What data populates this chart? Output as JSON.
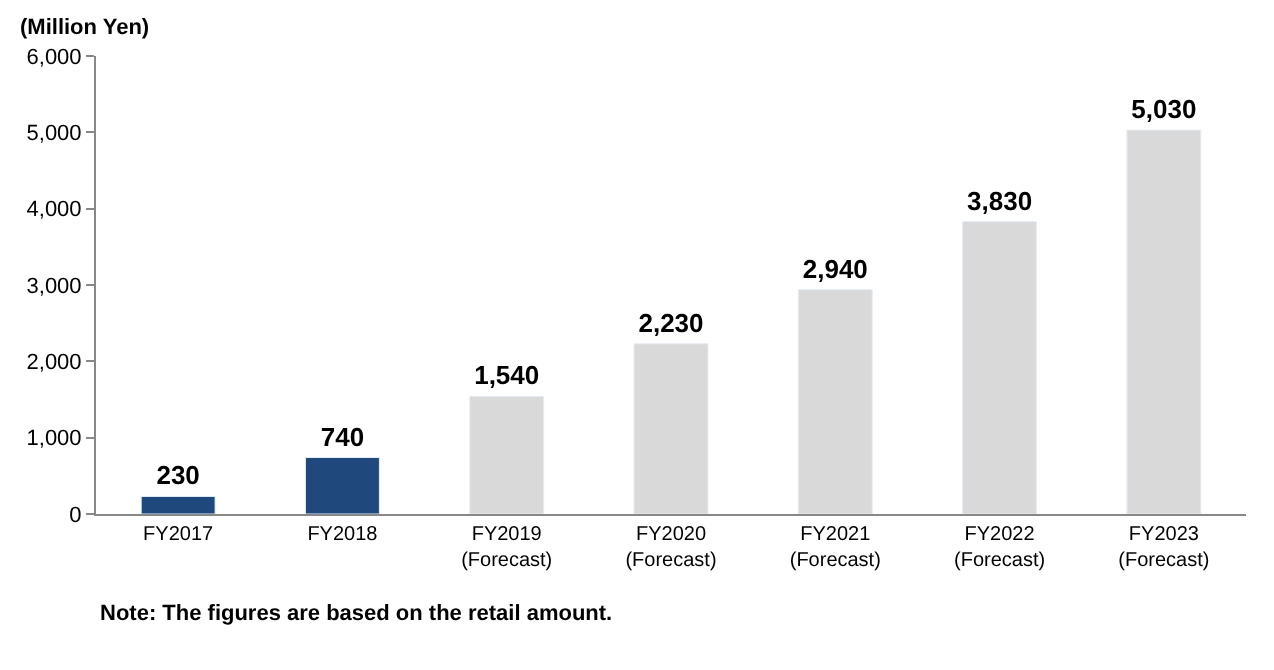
{
  "chart_data": {
    "type": "bar",
    "ylabel": "(Million Yen)",
    "categories": [
      "FY2017",
      "FY2018",
      "FY2019\n(Forecast)",
      "FY2020\n(Forecast)",
      "FY2021\n(Forecast)",
      "FY2022\n(Forecast)",
      "FY2023\n(Forecast)"
    ],
    "values": [
      230,
      740,
      1540,
      2230,
      2940,
      3830,
      5030
    ],
    "colors": [
      "#1f497d",
      "#1f497d",
      "#d9d9d9",
      "#d9d9d9",
      "#d9d9d9",
      "#d9d9d9",
      "#d9d9d9"
    ],
    "value_labels": [
      "230",
      "740",
      "1,540",
      "2,230",
      "2,940",
      "3,830",
      "5,030"
    ],
    "ylim": [
      0,
      6000
    ],
    "yticks": [
      0,
      {
        "value": 1000,
        "label": "1,000"
      },
      {
        "value": 2000,
        "label": "2,000"
      },
      {
        "value": 3000,
        "label": "3,000"
      },
      {
        "value": 4000,
        "label": "4,000"
      },
      {
        "value": 5000,
        "label": "5,000"
      },
      {
        "value": 6000,
        "label": "6,000"
      }
    ],
    "legend": false,
    "annotations": [
      "Note: The figures are based on the retail amount."
    ]
  }
}
